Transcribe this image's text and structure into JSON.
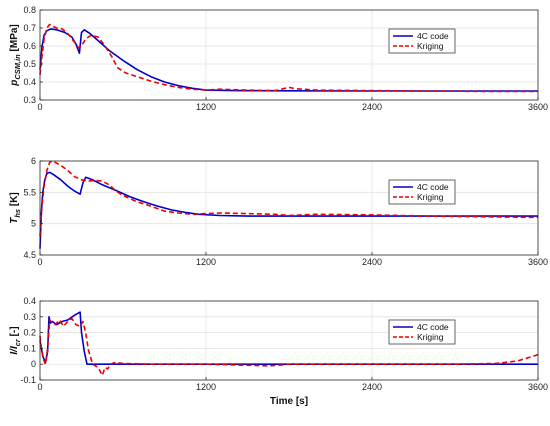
{
  "colors": {
    "code": "#0000cc",
    "kriging": "#ee0000"
  },
  "chart_data": [
    {
      "type": "line",
      "ylabel_main": "p",
      "ylabel_sub": "CSM,in",
      "ylabel_unit": " [MPa]",
      "xlim": [
        0,
        3600
      ],
      "ylim": [
        0.3,
        0.8
      ],
      "xticks": [
        0,
        1200,
        2400,
        3600
      ],
      "yticks": [
        0.3,
        0.4,
        0.5,
        0.6,
        0.7,
        0.8
      ],
      "ytick_labels": [
        "0.3",
        "0.4",
        "0.5",
        "0.6",
        "0.7",
        "0.8"
      ],
      "legend_position": "top-right",
      "series": [
        {
          "name": "4C code",
          "style": "solid",
          "x": [
            0,
            15,
            30,
            50,
            80,
            120,
            180,
            230,
            260,
            285,
            300,
            320,
            360,
            420,
            500,
            600,
            700,
            800,
            900,
            1000,
            1100,
            1200,
            1400,
            1800,
            2400,
            3000,
            3600
          ],
          "y": [
            0.47,
            0.6,
            0.66,
            0.685,
            0.695,
            0.69,
            0.675,
            0.65,
            0.61,
            0.56,
            0.675,
            0.69,
            0.67,
            0.63,
            0.575,
            0.52,
            0.47,
            0.43,
            0.4,
            0.38,
            0.365,
            0.355,
            0.352,
            0.351,
            0.35,
            0.35,
            0.35
          ]
        },
        {
          "name": "Kriging",
          "style": "dashed",
          "x": [
            0,
            15,
            30,
            50,
            70,
            90,
            120,
            160,
            200,
            240,
            280,
            300,
            330,
            370,
            420,
            470,
            520,
            560,
            620,
            700,
            800,
            900,
            1000,
            1100,
            1200,
            1300,
            1500,
            1700,
            1800,
            1850,
            2000,
            2400,
            2800,
            3200,
            3600
          ],
          "y": [
            0.44,
            0.55,
            0.64,
            0.7,
            0.72,
            0.71,
            0.7,
            0.695,
            0.67,
            0.63,
            0.59,
            0.6,
            0.64,
            0.66,
            0.65,
            0.6,
            0.54,
            0.48,
            0.45,
            0.43,
            0.405,
            0.385,
            0.37,
            0.36,
            0.355,
            0.36,
            0.355,
            0.352,
            0.37,
            0.362,
            0.355,
            0.352,
            0.35,
            0.348,
            0.347
          ]
        }
      ]
    },
    {
      "type": "line",
      "ylabel_main": "T",
      "ylabel_sub": "hs",
      "ylabel_unit": " [K]",
      "xlim": [
        0,
        3600
      ],
      "ylim": [
        4.5,
        6
      ],
      "xticks": [
        0,
        1200,
        2400,
        3600
      ],
      "yticks": [
        4.5,
        5,
        5.5,
        6
      ],
      "ytick_labels": [
        "4.5",
        "5",
        "5.5",
        "6"
      ],
      "legend_position": "top-right",
      "series": [
        {
          "name": "4C code",
          "style": "solid",
          "x": [
            0,
            5,
            10,
            20,
            35,
            50,
            70,
            100,
            150,
            200,
            250,
            290,
            310,
            330,
            380,
            450,
            550,
            650,
            750,
            850,
            950,
            1050,
            1150,
            1300,
            1500,
            2000,
            2400,
            3000,
            3600
          ],
          "y": [
            4.6,
            4.9,
            5.2,
            5.5,
            5.7,
            5.8,
            5.82,
            5.78,
            5.7,
            5.6,
            5.52,
            5.47,
            5.65,
            5.74,
            5.7,
            5.62,
            5.53,
            5.43,
            5.35,
            5.28,
            5.22,
            5.18,
            5.15,
            5.13,
            5.12,
            5.12,
            5.12,
            5.12,
            5.12
          ]
        },
        {
          "name": "Kriging",
          "style": "dashed",
          "x": [
            0,
            15,
            30,
            50,
            70,
            90,
            110,
            150,
            200,
            250,
            300,
            350,
            400,
            450,
            500,
            550,
            600,
            650,
            700,
            800,
            900,
            1000,
            1100,
            1200,
            1300,
            1500,
            1700,
            1800,
            2000,
            2400,
            2800,
            3200,
            3600
          ],
          "y": [
            4.8,
            5.3,
            5.6,
            5.85,
            5.98,
            6.0,
            5.98,
            5.93,
            5.85,
            5.75,
            5.7,
            5.68,
            5.69,
            5.68,
            5.62,
            5.52,
            5.45,
            5.4,
            5.35,
            5.28,
            5.2,
            5.17,
            5.15,
            5.16,
            5.17,
            5.16,
            5.15,
            5.13,
            5.15,
            5.14,
            5.12,
            5.11,
            5.1
          ]
        }
      ]
    },
    {
      "type": "line",
      "ylabel_main": "I/I",
      "ylabel_sub": "cr",
      "ylabel_unit": " [-]",
      "xlabel": "Time [s]",
      "xlim": [
        0,
        3600
      ],
      "ylim": [
        -0.1,
        0.4
      ],
      "xticks": [
        0,
        1200,
        2400,
        3600
      ],
      "yticks": [
        -0.1,
        0,
        0.1,
        0.2,
        0.3,
        0.4
      ],
      "ytick_labels": [
        "-0.1",
        "0",
        "0.1",
        "0.2",
        "0.3",
        "0.4"
      ],
      "legend_position": "top-right",
      "series": [
        {
          "name": "4C code",
          "style": "solid",
          "x": [
            0,
            20,
            40,
            55,
            65,
            75,
            90,
            120,
            160,
            200,
            250,
            290,
            300,
            320,
            340,
            360,
            600,
            1200,
            1800,
            2400,
            3000,
            3600
          ],
          "y": [
            0.15,
            0.05,
            0.01,
            0.08,
            0.3,
            0.26,
            0.27,
            0.25,
            0.27,
            0.28,
            0.31,
            0.33,
            0.2,
            0.08,
            0.0,
            0.0,
            0.0,
            0.0,
            0.0,
            0.0,
            0.0,
            0.0
          ]
        },
        {
          "name": "Kriging",
          "style": "dashed",
          "x": [
            0,
            10,
            25,
            40,
            55,
            70,
            90,
            110,
            140,
            170,
            200,
            230,
            260,
            290,
            310,
            330,
            350,
            380,
            420,
            450,
            470,
            490,
            510,
            540,
            600,
            800,
            1200,
            1650,
            1750,
            1800,
            2400,
            3000,
            3300,
            3450,
            3600
          ],
          "y": [
            0.18,
            0.1,
            0.03,
            0.0,
            0.1,
            0.28,
            0.26,
            0.25,
            0.28,
            0.24,
            0.27,
            0.29,
            0.25,
            0.24,
            0.27,
            0.2,
            0.09,
            0.0,
            -0.02,
            -0.07,
            -0.02,
            -0.03,
            0.0,
            0.01,
            0.005,
            0.0,
            0.0,
            -0.01,
            -0.005,
            0.0,
            0.0,
            0.0,
            0.005,
            0.02,
            0.06
          ]
        }
      ]
    }
  ]
}
